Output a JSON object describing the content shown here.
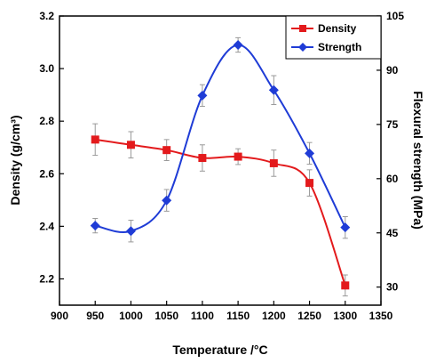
{
  "chart_data": {
    "type": "line",
    "xlabel": "Temperature /°C",
    "ylabel_left": "Density (g/cm³)",
    "ylabel_right": "Flexural strength (MPa)",
    "xlim": [
      900,
      1350
    ],
    "ylim_left": [
      2.1,
      3.2
    ],
    "ylim_right": [
      25,
      105
    ],
    "x_ticks": [
      900,
      950,
      1000,
      1050,
      1100,
      1150,
      1200,
      1250,
      1300,
      1350
    ],
    "y_left_ticks": [
      2.2,
      2.4,
      2.6,
      2.8,
      3.0,
      3.2
    ],
    "y_right_ticks": [
      30,
      45,
      60,
      75,
      90,
      105
    ],
    "y_left_tick_labels": [
      "2.2",
      "2.4",
      "2.6",
      "2.8",
      "3.0",
      "3.2"
    ],
    "legend_position": "top-right",
    "grid": false,
    "x": [
      950,
      1000,
      1050,
      1100,
      1150,
      1200,
      1250,
      1300
    ],
    "series": [
      {
        "name": "Density",
        "axis": "left",
        "color": "#e31a1c",
        "marker": "square",
        "values": [
          2.73,
          2.71,
          2.69,
          2.66,
          2.665,
          2.64,
          2.565,
          2.175
        ],
        "error": [
          0.06,
          0.05,
          0.04,
          0.05,
          0.03,
          0.05,
          0.05,
          0.04
        ]
      },
      {
        "name": "Strength",
        "axis": "right",
        "color": "#1f3cd6",
        "marker": "diamond",
        "values": [
          47,
          45.5,
          54,
          83,
          97,
          84.5,
          67,
          46.5
        ],
        "error": [
          2,
          3,
          3,
          3,
          2,
          4,
          3,
          3
        ]
      }
    ]
  }
}
